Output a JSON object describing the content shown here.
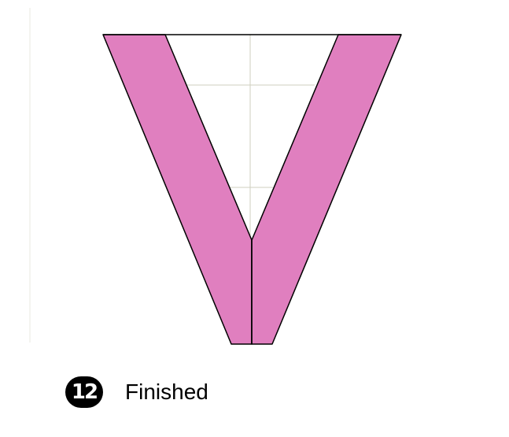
{
  "step": {
    "number": "12",
    "label": "Finished"
  },
  "colors": {
    "paper": "#e07fbf",
    "outline": "#000000",
    "guide": "#cfcfbf",
    "background": "#ffffff"
  }
}
